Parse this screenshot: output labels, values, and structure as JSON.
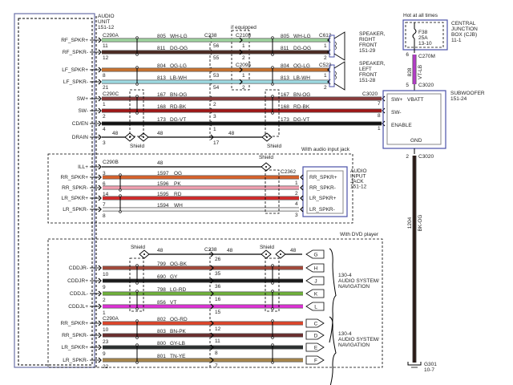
{
  "audio_unit": {
    "lines": [
      "AUDIO",
      "UNIT",
      "151-12"
    ]
  },
  "if_equipped": "if equipped",
  "shield_label": "Shield",
  "section1": {
    "connector_unit_a": "C290A",
    "connector_unit_c": "C290C",
    "connector_inline": "C238",
    "connector_rf": "C2108",
    "connector_lf": "C2095",
    "connector_rf_spk": "C612",
    "connector_lf_spk": "C523",
    "connector_sub": "C3020",
    "wires": [
      {
        "label": "RF_SPKR+",
        "unit_pin": "11",
        "circuit": "805",
        "code": "WH-LG",
        "color": "#9fd49f",
        "c238_pin": "56",
        "mid_pin": "1",
        "far_pin": "1"
      },
      {
        "label": "RF_SPKR-",
        "unit_pin": "12",
        "circuit": "811",
        "code": "DG-OG",
        "color": "#4b2a22",
        "c238_pin": "55",
        "mid_pin": "2",
        "far_pin": "2"
      },
      {
        "label": "LF_SPKR+",
        "unit_pin": "8",
        "circuit": "804",
        "code": "OG-LG",
        "color": "#c9732f",
        "c238_pin": "53",
        "mid_pin": "1",
        "far_pin": "1"
      },
      {
        "label": "LF_SPKR-",
        "unit_pin": "21",
        "circuit": "813",
        "code": "LB-WH",
        "color": "#9fdbe3",
        "c238_pin": "54",
        "mid_pin": "2",
        "far_pin": "2"
      },
      {
        "label": "SW+",
        "unit_pin": "1",
        "circuit": "167",
        "code": "BN-OG",
        "color": "#8a3b3b",
        "c238_pin": "2",
        "far_pin": "7"
      },
      {
        "label": "SW-",
        "unit_pin": "2",
        "circuit": "168",
        "code": "RD-BK",
        "color": "#a01818",
        "c238_pin": "3",
        "far_pin": "8"
      },
      {
        "label": "CD/EN",
        "unit_pin": "4",
        "circuit": "173",
        "code": "DG-VT",
        "color": "#111111",
        "c238_pin": "1",
        "far_pin": "1"
      },
      {
        "label": "DRAIN",
        "unit_pin": "3",
        "circuit": "48",
        "c238_pin": "17"
      }
    ],
    "speaker_rf": [
      "SPEAKER,",
      "RIGHT",
      "FRONT",
      "151-29"
    ],
    "speaker_lf": [
      "SPEAKER,",
      "LEFT",
      "FRONT",
      "151-28"
    ]
  },
  "power": {
    "hot_label": "Hot at all times",
    "cjb": [
      "CENTRAL",
      "JUNCTION",
      "BOX (CJB)",
      "11-1"
    ],
    "fuse": [
      "F38",
      "25A",
      "13-10"
    ],
    "pin_c270m": "6",
    "connector_c270m": "C270M",
    "circuit": "828",
    "code": "VT-LB",
    "color": "#b43cc8",
    "pin_c3020": "5",
    "connector_c3020": "C3020"
  },
  "subwoofer": {
    "title": [
      "SUBWOOFER",
      "151-24"
    ],
    "pins": [
      "SW+",
      "VBATT",
      "SW-",
      "ENABLE",
      "GND"
    ],
    "ground_pin": "2",
    "ground_connector": "C3020",
    "ground_circuit": "1204",
    "ground_code": "BK-OG",
    "ground_color": "#2a1a16",
    "ground_point": [
      "G301",
      "10-7"
    ]
  },
  "section2": {
    "title": "With audio input jack",
    "connector_unit": "C290B",
    "connector_jack": "C2362",
    "jack_title": [
      "AUDIO",
      "INPUT",
      "JACK",
      "151-12"
    ],
    "wires": [
      {
        "label": "ILL+",
        "unit_pin": "3",
        "circuit": "48"
      },
      {
        "label": "RR_SPKR+",
        "unit_pin": "6",
        "circuit": "1597",
        "code": "OG",
        "color": "#d9622b",
        "jack_pin": "1",
        "jack_label": "RR_SPKR+"
      },
      {
        "label": "RR_SPKR-",
        "unit_pin": "14",
        "circuit": "1596",
        "code": "PK",
        "color": "#f2a0b0",
        "jack_pin": "2",
        "jack_label": "RR_SPKR-"
      },
      {
        "label": "LR_SPKR+",
        "unit_pin": "7",
        "circuit": "1595",
        "code": "RD",
        "color": "#d42a2a",
        "jack_pin": "4",
        "jack_label": "LR_SPKR+"
      },
      {
        "label": "LR_SPKR-",
        "unit_pin": "8",
        "circuit": "1594",
        "code": "WH",
        "color": "#f4f4f4",
        "jack_pin": "3",
        "jack_label": "LR_SPKR-"
      }
    ]
  },
  "section3": {
    "title": "With DVD player",
    "connector_inline": "C238",
    "connector_unit": "C290A",
    "nav_label": [
      "130-4",
      "AUDIO SYSTEM/",
      "NAVIGATION"
    ],
    "wires": [
      {
        "label": "",
        "unit_pin": "",
        "circuit": "48",
        "c238_pin": "26",
        "term": "G"
      },
      {
        "label": "CDDJR-",
        "unit_pin": "10",
        "circuit": "799",
        "code": "OG-BK",
        "color": "#a5493a",
        "c238_pin": "35",
        "term": "H"
      },
      {
        "label": "CDDJR+",
        "unit_pin": "9",
        "circuit": "690",
        "code": "GY",
        "color": "#1a1a1a",
        "c238_pin": "36",
        "term": "J"
      },
      {
        "label": "CDDJL-",
        "unit_pin": "2",
        "circuit": "798",
        "code": "LG-RD",
        "color": "#6fb23a",
        "c238_pin": "16",
        "term": "K"
      },
      {
        "label": "CDDJL+",
        "unit_pin": "1",
        "circuit": "856",
        "code": "VT",
        "color": "#e030d8",
        "c238_pin": "15",
        "term": "L"
      },
      {
        "label": "RR_SPKR+",
        "unit_pin": "10",
        "circuit": "802",
        "code": "OG-RD",
        "color": "#e0452a",
        "c238_pin": "12",
        "term": "C"
      },
      {
        "label": "RR_SPKR-",
        "unit_pin": "23",
        "circuit": "803",
        "code": "BN-PK",
        "color": "#6b2d2d",
        "c238_pin": "11",
        "term": "D"
      },
      {
        "label": "LR_SPKR+",
        "unit_pin": "9",
        "circuit": "800",
        "code": "GY-LB",
        "color": "#2a2f2f",
        "c238_pin": "8",
        "term": "E"
      },
      {
        "label": "LR_SPKR-",
        "unit_pin": "22",
        "circuit": "801",
        "code": "TN-YE",
        "color": "#a8864a",
        "c238_pin": "7",
        "term": "F"
      }
    ]
  }
}
